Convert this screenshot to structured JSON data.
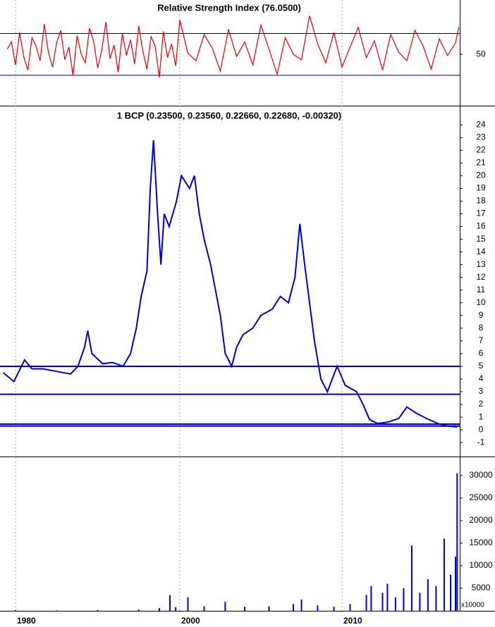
{
  "chart_data": [
    {
      "type": "line",
      "title": "Relative Strength Index (76.0500)",
      "x": [
        1979,
        1979.5,
        1980,
        1980.5,
        1981,
        1981.5,
        1982,
        1982.5,
        1983,
        1983.5,
        1984,
        1984.5,
        1985,
        1985.5,
        1986,
        1986.5,
        1987,
        1987.5,
        1988,
        1988.5,
        1989,
        1989.5,
        1990,
        1990.5,
        1991,
        1991.5,
        1992,
        1992.5,
        1993,
        1993.5,
        1994,
        1994.5,
        1995,
        1995.5,
        1996,
        1996.5,
        1997,
        1997.5,
        1998,
        1998.5,
        1999,
        1999.5,
        2000,
        2000.5,
        2001,
        2001.5,
        2002,
        2002.5,
        2003,
        2003.5,
        2004,
        2004.5,
        2005,
        2005.5,
        2006,
        2006.5,
        2007,
        2007.5,
        2008,
        2008.5,
        2009,
        2009.5,
        2010,
        2010.5,
        2011,
        2011.5,
        2012,
        2012.5,
        2013,
        2013.5,
        2014,
        2014.5,
        2015,
        2015.5,
        2016,
        2016.5,
        2017,
        2017.2
      ],
      "series": [
        {
          "color": "#e00000",
          "values": [
            55,
            62,
            40,
            71,
            48,
            35,
            66,
            58,
            44,
            79,
            52,
            38,
            61,
            73,
            45,
            57,
            30,
            68,
            50,
            42,
            75,
            63,
            37,
            54,
            81,
            46,
            59,
            33,
            70,
            49,
            64,
            41,
            77,
            53,
            36,
            67,
            58,
            28,
            72,
            47,
            60,
            39,
            83,
            51,
            44,
            69,
            56,
            34,
            74,
            48,
            62,
            40,
            78,
            55,
            31,
            66,
            50,
            45,
            87,
            60,
            42,
            71,
            38,
            57,
            76,
            47,
            63,
            35,
            69,
            52,
            44,
            73,
            58,
            36,
            65,
            49,
            61,
            76.05
          ]
        }
      ],
      "levels": [
        30,
        70
      ],
      "ylim": [
        1,
        102
      ],
      "yticks": [
        50
      ]
    },
    {
      "type": "line",
      "title": "1 BCP (0.23500, 0.23560, 0.22660, 0.22680, -0.00320)",
      "x": [
        1978.5,
        1979.8,
        1981.1,
        1982.0,
        1983.3,
        1985.0,
        1986.7,
        1987.6,
        1988.4,
        1988.8,
        1989.3,
        1990.6,
        1991.8,
        1993.1,
        1994.0,
        1994.7,
        1995.3,
        1996.0,
        1996.4,
        1996.8,
        1997.3,
        1997.7,
        1998.1,
        1998.7,
        1999.6,
        2000.1,
        2000.6,
        2000.9,
        2001.2,
        2001.5,
        2001.9,
        2002.2,
        2002.5,
        2002.8,
        2003.2,
        2003.5,
        2003.9,
        2004.5,
        2005.0,
        2005.7,
        2006.2,
        2006.7,
        2007.1,
        2007.4,
        2007.7,
        2008.0,
        2008.3,
        2008.7,
        2009.1,
        2009.7,
        2010.2,
        2010.9,
        2011.3,
        2011.7,
        2012.2,
        2012.8,
        2013.5,
        2014.0,
        2014.6,
        2015.2,
        2015.9,
        2016.5,
        2017.1
      ],
      "series": [
        {
          "color": "#0000cc",
          "values": [
            4.5,
            3.8,
            5.5,
            4.8,
            4.8,
            4.6,
            4.4,
            5.0,
            6.5,
            7.8,
            6.0,
            5.2,
            5.3,
            5.0,
            6.0,
            8.0,
            10.5,
            12.5,
            19,
            22.8,
            17,
            13,
            17,
            16,
            18,
            20,
            19,
            20,
            17,
            15,
            13,
            11,
            9,
            6,
            5,
            6.5,
            7.5,
            8,
            9,
            9.5,
            10.5,
            10,
            12,
            16.2,
            13,
            10,
            7,
            4,
            3,
            5,
            3.5,
            3,
            2,
            0.8,
            0.5,
            0.6,
            0.9,
            1.8,
            1.3,
            0.9,
            0.5,
            0.3,
            0.23
          ]
        }
      ],
      "levels": [
        5,
        2.8,
        0.45,
        0.3
      ],
      "ylim": [
        -2.1,
        25.4
      ],
      "yticks": [
        -1,
        0,
        1,
        2,
        3,
        4,
        5,
        6,
        7,
        8,
        9,
        10,
        11,
        12,
        13,
        14,
        15,
        16,
        17,
        18,
        19,
        20,
        21,
        22,
        23,
        24
      ]
    },
    {
      "type": "bar",
      "unit_label": "x10000",
      "x": [
        1980,
        1985,
        1990,
        1995,
        1997.5,
        1998.8,
        1999.5,
        2000.5,
        2001.5,
        2002.8,
        2004,
        2005.5,
        2007,
        2007.5,
        2008.5,
        2009.5,
        2010.5,
        2011.5,
        2011.8,
        2012.5,
        2012.8,
        2013.3,
        2013.8,
        2014.3,
        2014.8,
        2015.3,
        2015.8,
        2016.3,
        2016.7,
        2017.0,
        2017.1
      ],
      "series": [
        {
          "color": "#0000cc",
          "values": [
            100,
            80,
            150,
            300,
            600,
            3500,
            800,
            3000,
            1000,
            2000,
            900,
            1000,
            1500,
            2500,
            1200,
            900,
            1500,
            3500,
            5500,
            4000,
            6000,
            3000,
            5000,
            14500,
            4000,
            7000,
            5500,
            16000,
            8000,
            12000,
            30500
          ]
        }
      ],
      "ylim": [
        0,
        33900
      ],
      "yticks": [
        5000,
        10000,
        15000,
        20000,
        25000,
        30000
      ],
      "xlim": [
        1978.1,
        2017.3
      ],
      "xticks": [
        1980,
        2000,
        2010
      ]
    }
  ]
}
